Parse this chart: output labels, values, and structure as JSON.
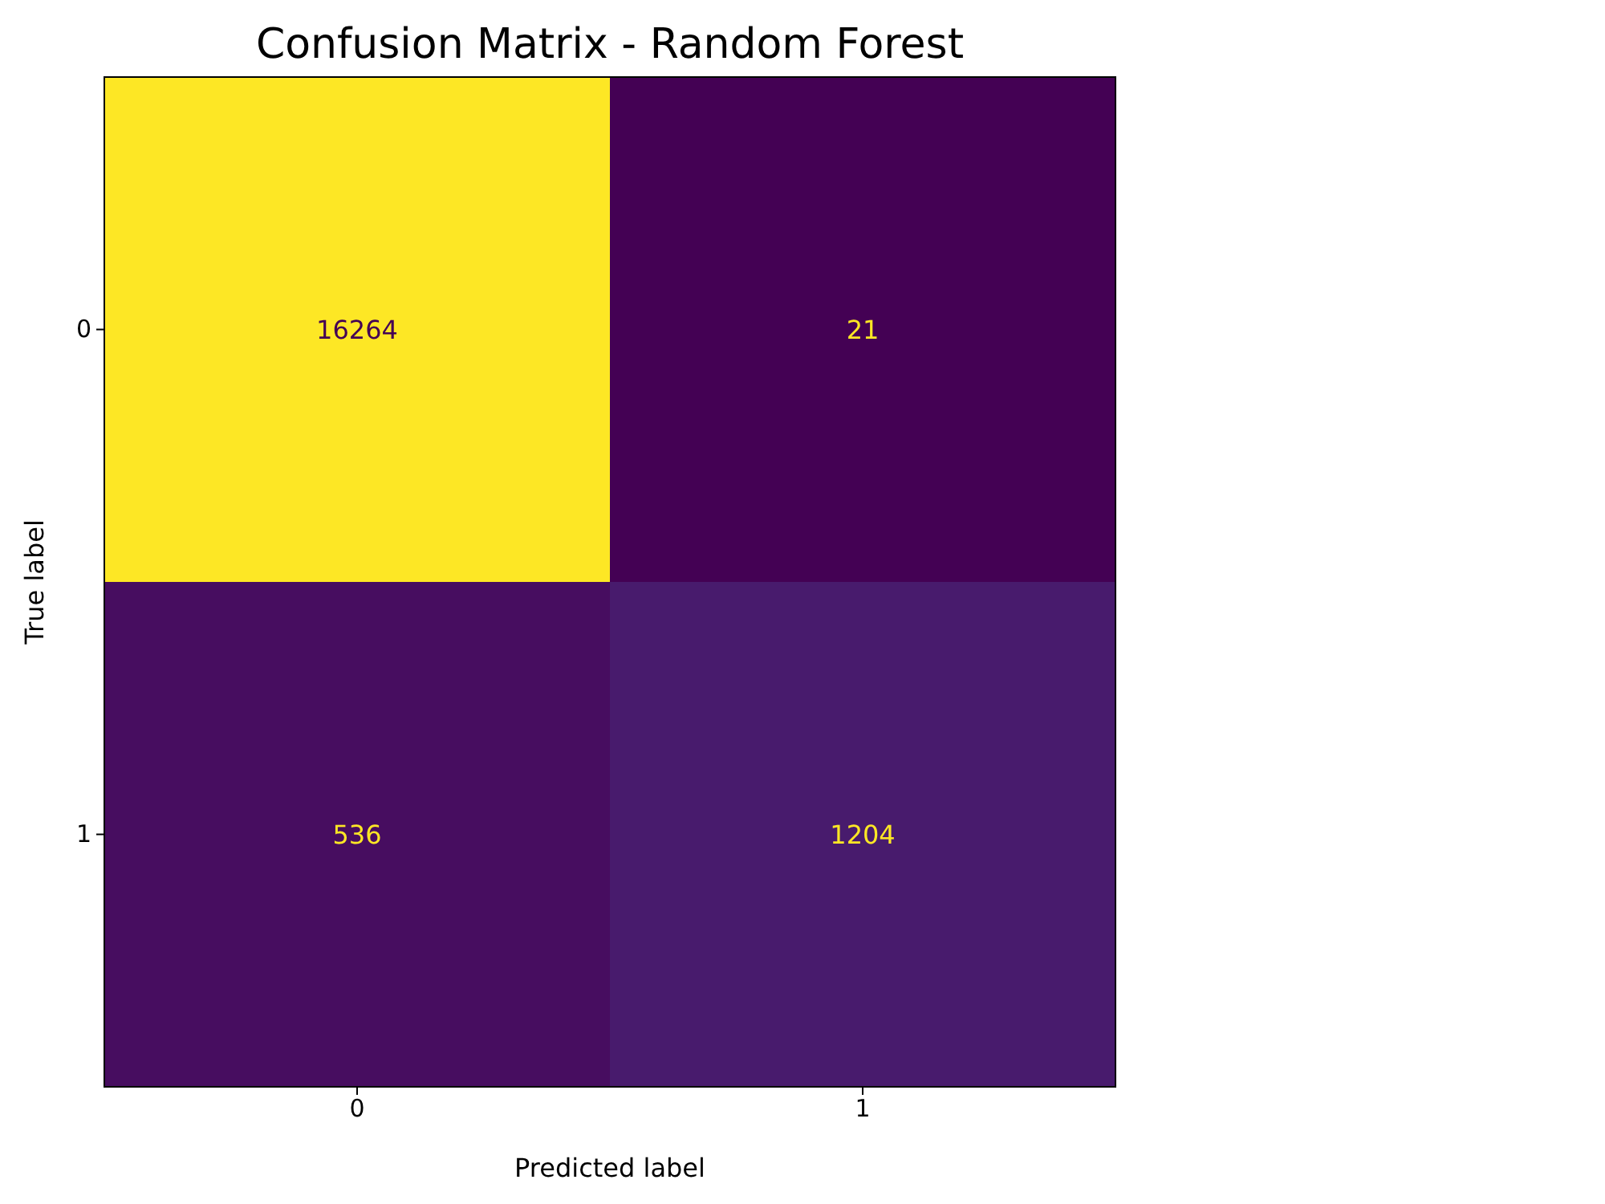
{
  "chart_data": {
    "type": "heatmap",
    "title": "Confusion Matrix - Random Forest",
    "xlabel": "Predicted label",
    "ylabel": "True label",
    "categories": [
      "0",
      "1"
    ],
    "y_categories": [
      "0",
      "1"
    ],
    "cells": [
      [
        16264,
        21
      ],
      [
        536,
        1204
      ]
    ],
    "data_labels": true
  }
}
